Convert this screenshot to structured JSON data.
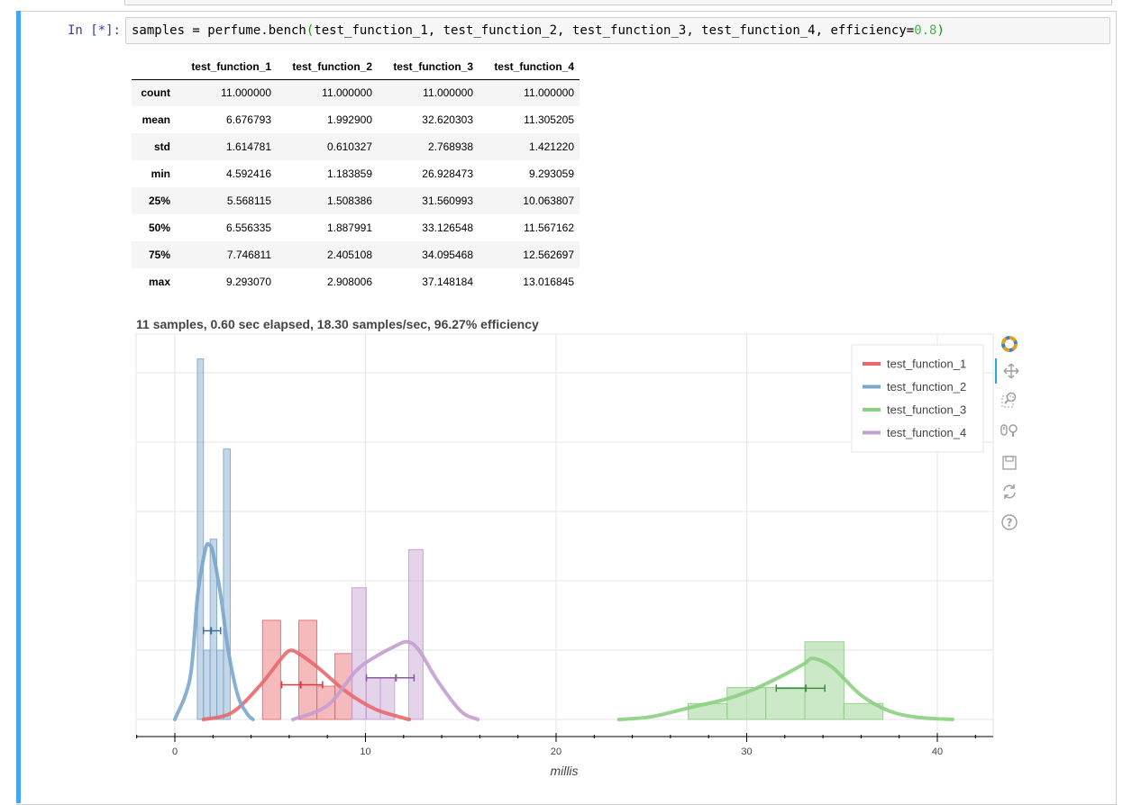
{
  "cell": {
    "prompt": "In [*]:",
    "code_prefix": "samples = perfume.bench",
    "code_open": "(",
    "code_args": "test_function_1, test_function_2, test_function_3, test_function_4, efficiency=",
    "code_num": "0.8",
    "code_close": ")"
  },
  "table": {
    "columns": [
      "test_function_1",
      "test_function_2",
      "test_function_3",
      "test_function_4"
    ],
    "rows": [
      {
        "label": "count",
        "values": [
          "11.000000",
          "11.000000",
          "11.000000",
          "11.000000"
        ]
      },
      {
        "label": "mean",
        "values": [
          "6.676793",
          "1.992900",
          "32.620303",
          "11.305205"
        ]
      },
      {
        "label": "std",
        "values": [
          "1.614781",
          "0.610327",
          "2.768938",
          "1.421220"
        ]
      },
      {
        "label": "min",
        "values": [
          "4.592416",
          "1.183859",
          "26.928473",
          "9.293059"
        ]
      },
      {
        "label": "25%",
        "values": [
          "5.568115",
          "1.508386",
          "31.560993",
          "10.063807"
        ]
      },
      {
        "label": "50%",
        "values": [
          "6.556335",
          "1.887991",
          "33.126548",
          "11.567162"
        ]
      },
      {
        "label": "75%",
        "values": [
          "7.746811",
          "2.405108",
          "34.095468",
          "12.562697"
        ]
      },
      {
        "label": "max",
        "values": [
          "9.293070",
          "2.908006",
          "37.148184",
          "13.016845"
        ]
      }
    ]
  },
  "plot": {
    "title": "11 samples, 0.60 sec elapsed, 18.30 samples/sec, 96.27% efficiency"
  },
  "chart_data": {
    "type": "histogram+kde",
    "title": "11 samples, 0.60 sec elapsed, 18.30 samples/sec, 96.27% efficiency",
    "xlabel": "millis",
    "ylabel": "",
    "xlim": [
      -2,
      43
    ],
    "ylim": [
      0,
      0.55
    ],
    "xticks": [
      "0",
      "10",
      "20",
      "30",
      "40"
    ],
    "grid": true,
    "legend_position": "top-right",
    "series": [
      {
        "name": "test_function_1",
        "color": "#e8686b",
        "bins": [
          [
            4.6,
            5.55,
            0.143
          ],
          [
            5.55,
            6.5,
            0.0
          ],
          [
            6.5,
            7.45,
            0.143
          ],
          [
            7.45,
            8.4,
            0.048
          ],
          [
            8.4,
            9.3,
            0.095
          ]
        ],
        "kde_x": [
          1.5,
          3,
          4.5,
          5.5,
          6,
          6.5,
          7.5,
          9,
          10.5,
          12,
          12.3
        ],
        "kde_y": [
          0.0,
          0.01,
          0.05,
          0.085,
          0.099,
          0.095,
          0.075,
          0.04,
          0.015,
          0.002,
          0.0
        ],
        "ci_low": 5.6,
        "ci_mid": 6.6,
        "ci_high": 7.75,
        "ci_y": 0.05
      },
      {
        "name": "test_function_2",
        "color": "#7ba7cc",
        "bins": [
          [
            1.18,
            1.5,
            0.52
          ],
          [
            1.5,
            1.85,
            0.1
          ],
          [
            1.85,
            2.2,
            0.26
          ],
          [
            2.2,
            2.55,
            0.1
          ],
          [
            2.55,
            2.91,
            0.39
          ]
        ],
        "kde_x": [
          0.0,
          0.8,
          1.2,
          1.6,
          1.8,
          2.0,
          2.4,
          2.8,
          3.3,
          3.8,
          4.1
        ],
        "kde_y": [
          0.0,
          0.06,
          0.18,
          0.245,
          0.252,
          0.24,
          0.18,
          0.1,
          0.035,
          0.008,
          0.0
        ],
        "ci_low": 1.5,
        "ci_mid": 1.9,
        "ci_high": 2.4,
        "ci_y": 0.128
      },
      {
        "name": "test_function_3",
        "color": "#8ccf82",
        "bins": [
          [
            26.93,
            28.97,
            0.023
          ],
          [
            28.97,
            31.0,
            0.046
          ],
          [
            31.0,
            33.05,
            0.046
          ],
          [
            33.05,
            35.1,
            0.112
          ],
          [
            35.1,
            37.15,
            0.023
          ]
        ],
        "kde_x": [
          23.3,
          25,
          27,
          29,
          30.5,
          32,
          33,
          33.5,
          34.5,
          36,
          37.5,
          39,
          40.8
        ],
        "kde_y": [
          0.0,
          0.004,
          0.017,
          0.03,
          0.045,
          0.065,
          0.08,
          0.088,
          0.075,
          0.035,
          0.012,
          0.003,
          0.0
        ],
        "ci_low": 31.55,
        "ci_mid": 33.1,
        "ci_high": 34.1,
        "ci_y": 0.045
      },
      {
        "name": "test_function_4",
        "color": "#c39fd0",
        "bins": [
          [
            9.29,
            10.04,
            0.19
          ],
          [
            10.04,
            10.78,
            0.06
          ],
          [
            10.78,
            11.53,
            0.06
          ],
          [
            11.53,
            12.27,
            0.0
          ],
          [
            12.27,
            13.02,
            0.245
          ]
        ],
        "kde_x": [
          6.2,
          8,
          9.5,
          10.5,
          11.5,
          12.2,
          12.8,
          13.8,
          15,
          15.9
        ],
        "kde_y": [
          0.0,
          0.02,
          0.07,
          0.09,
          0.105,
          0.112,
          0.1,
          0.055,
          0.012,
          0.0
        ],
        "ci_low": 10.05,
        "ci_mid": 11.6,
        "ci_high": 12.55,
        "ci_y": 0.06
      }
    ]
  },
  "toolbar": {
    "icons": [
      "bokeh-logo-icon",
      "pan-icon",
      "box-zoom-icon",
      "wheel-zoom-icon",
      "save-icon",
      "reset-icon",
      "help-icon"
    ]
  }
}
